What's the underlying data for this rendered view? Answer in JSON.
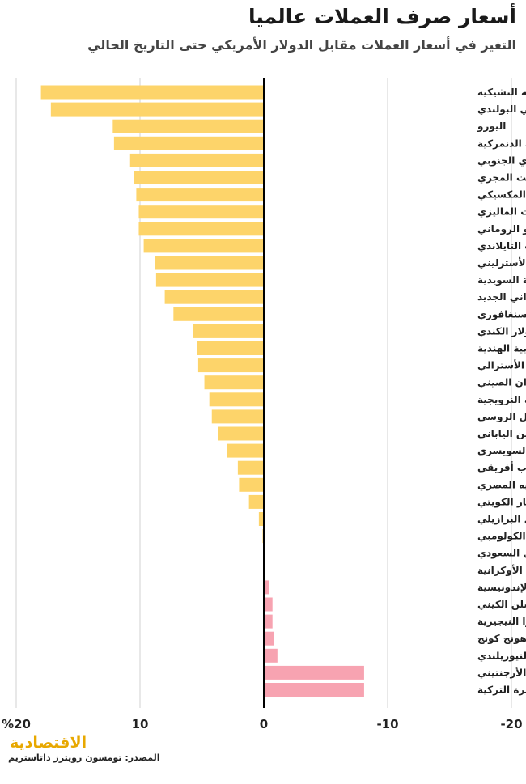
{
  "title": "أسعار صرف العملات عالميا",
  "subtitle": "التغير في أسعار العملات مقابل الدولار الأمريكي حتى التاريخ الحالي",
  "logo_text": "الاقتصادية",
  "source": "المصدر: تومسون رويترز داتاستريم",
  "colors": {
    "gain": "#fdd46a",
    "loss": "#f7a3b1",
    "zero_line": "#000000",
    "grid": "#d9d9d9"
  },
  "chart_data": {
    "type": "bar",
    "orientation": "horizontal",
    "title": "أسعار صرف العملات عالميا",
    "subtitle": "التغير في أسعار العملات مقابل الدولار الأمريكي حتى التاريخ الحالي",
    "xlim": [
      -20,
      20
    ],
    "xticks": [
      {
        "value": 20,
        "label": "%20"
      },
      {
        "value": 10,
        "label": "10"
      },
      {
        "value": 0,
        "label": "0"
      },
      {
        "value": -10,
        "label": "-10"
      },
      {
        "value": -20,
        "label": "-20"
      }
    ],
    "grid": true,
    "categories": [
      "الكرونة التشيكية",
      "الزلوتي البولندي",
      "اليورو",
      "الكرونة الدنمركية",
      "الوون الكوري الجنوبي",
      "الفورينت المجري",
      "البيزو المكسيكي",
      "الرنجيت الماليزي",
      "الليو الروماني",
      "البات التايلاندي",
      "الجنيه الأسترليني",
      "الكرونة السويدية",
      "الدولار التايواني الجديد",
      "الدولار السنغافوري",
      "الدولار الكندي",
      "الروبية الهندية",
      "الدولار الأسترالي",
      "اليوان الصيني",
      "الكرونة النرويجية",
      "الروبل الروسي",
      "الين الياباني",
      "الفرنك السويسري",
      "الراند الجنوب أفريقي",
      "الجنيه المصري",
      "الدينار الكويتي",
      "الريال البرازيلي",
      "البيزو الكولومبي",
      "الريال السعودي",
      "الهريفنا الأوكرانية",
      "الروبية الإندونيسية",
      "الشلن الكيني",
      "النايرا النيجيرية",
      "دولار هونج كونج",
      "الدولار النيوزيلندي",
      "البيزو الأرجنتيني",
      "الليرة التركية"
    ],
    "values": [
      18.0,
      17.2,
      12.2,
      12.1,
      10.8,
      10.5,
      10.3,
      10.1,
      10.1,
      9.7,
      8.8,
      8.7,
      8.0,
      7.3,
      5.7,
      5.4,
      5.3,
      4.8,
      4.4,
      4.2,
      3.7,
      3.0,
      2.1,
      2.0,
      1.2,
      0.4,
      0.1,
      0.0,
      0.0,
      -0.4,
      -0.7,
      -0.7,
      -0.8,
      -1.1,
      -8.1,
      -8.1
    ]
  }
}
